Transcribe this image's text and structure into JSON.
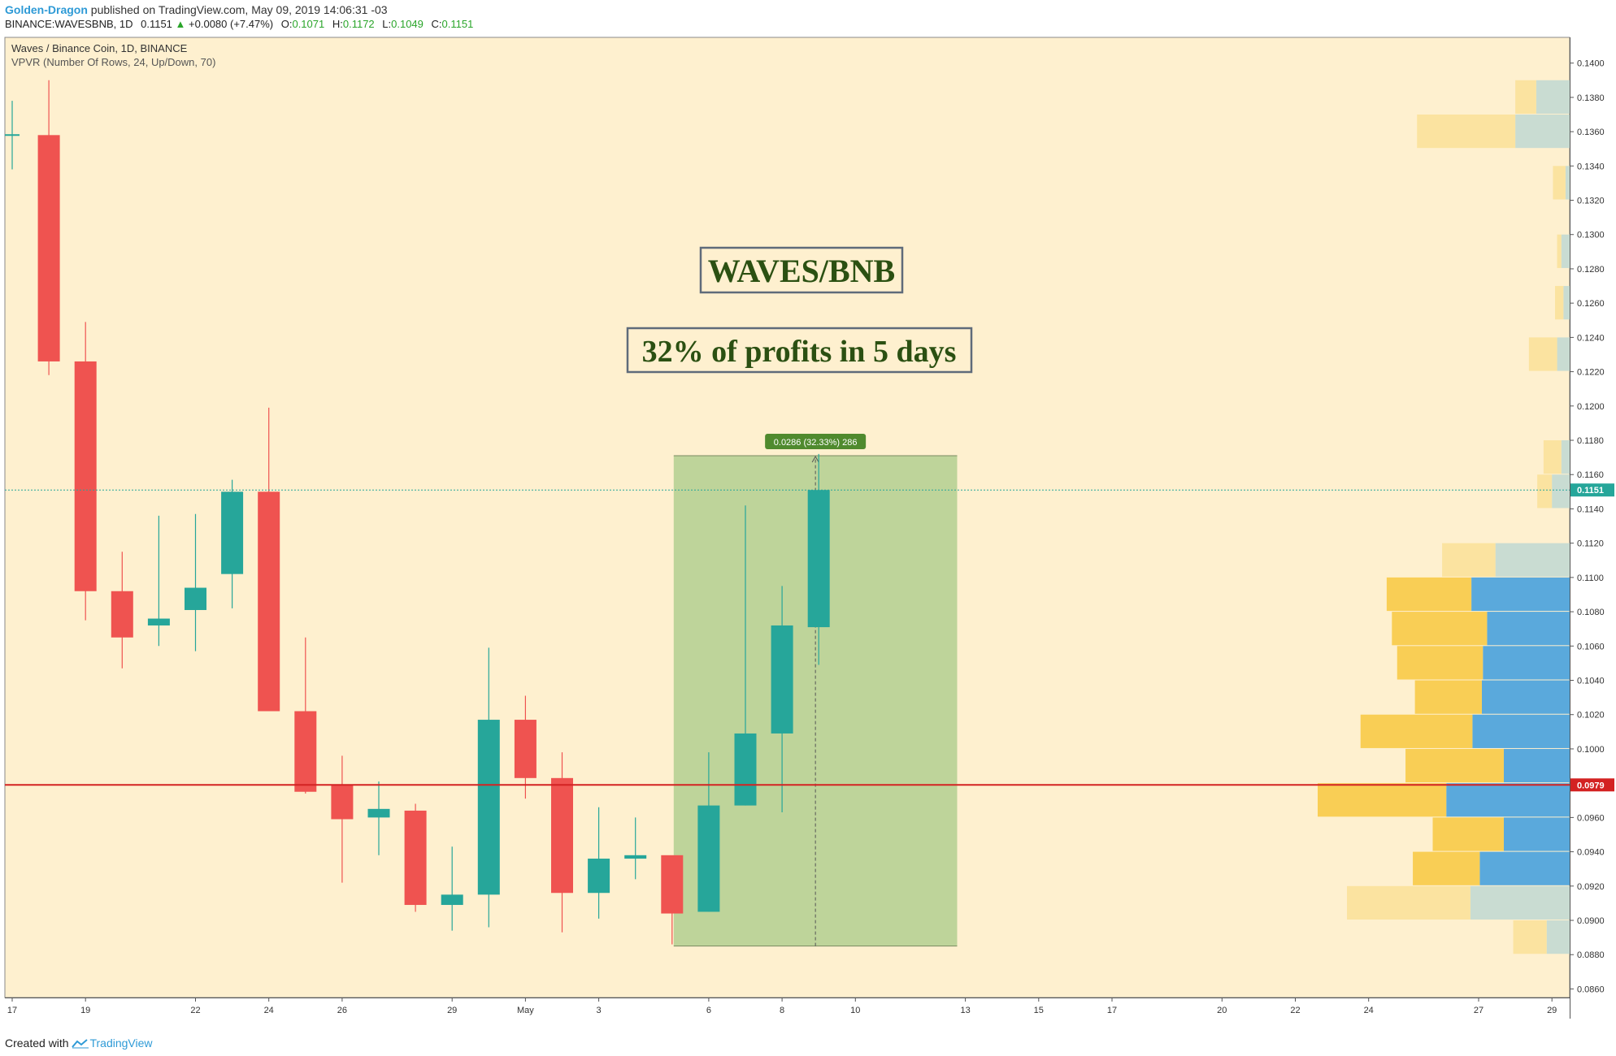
{
  "header": {
    "author": "Golden-Dragon",
    "published": "published on TradingView.com, May 09, 2019 14:06:31 -03",
    "symbol": "BINANCE:WAVESBNB, 1D",
    "last": "0.1151",
    "change": "+0.0080 (+7.47%)",
    "o_label": "O:",
    "o": "0.1071",
    "h_label": "H:",
    "h": "0.1172",
    "l_label": "L:",
    "l": "0.1049",
    "c_label": "C:",
    "c": "0.1151"
  },
  "legend": {
    "title": "Waves / Binance Coin, 1D, BINANCE",
    "indicator": "VPVR (Number Of Rows, 24, Up/Down, 70)"
  },
  "annotations": {
    "headline": "WAVES/BNB",
    "subline": "32% of profits in 5 days",
    "measure_label": "0.0286 (32.33%) 286",
    "last_price_label": "0.1151",
    "line_price_label": "0.0979"
  },
  "footer": {
    "created_with": "Created with",
    "brand": "TradingView"
  },
  "colors": {
    "background": "#fef0cf",
    "up": "#26a69a",
    "down": "#ef5350",
    "measure_fill": "#bed49a",
    "measure_label_bg": "#4f8a2e",
    "vp_up_bright": "#5aa9dc",
    "vp_down_bright": "#f9ce55",
    "vp_up_pale": "#c9dcd2",
    "vp_down_pale": "#fbe3a0",
    "support_line": "#d32222",
    "title_text": "#2b5012"
  },
  "chart_data": {
    "type": "candlestick",
    "ylim": [
      0.0855,
      0.1415
    ],
    "y_ticks": [
      "0.0860",
      "0.0880",
      "0.0900",
      "0.0920",
      "0.0940",
      "0.0960",
      "0.0980",
      "0.1000",
      "0.1020",
      "0.1040",
      "0.1060",
      "0.1080",
      "0.1100",
      "0.1120",
      "0.1140",
      "0.1160",
      "0.1180",
      "0.1200",
      "0.1220",
      "0.1240",
      "0.1260",
      "0.1280",
      "0.1300",
      "0.1320",
      "0.1340",
      "0.1360",
      "0.1380",
      "0.1400"
    ],
    "x_labels": [
      {
        "label": "17",
        "i": 0
      },
      {
        "label": "19",
        "i": 2
      },
      {
        "label": "22",
        "i": 5
      },
      {
        "label": "24",
        "i": 7
      },
      {
        "label": "26",
        "i": 9
      },
      {
        "label": "29",
        "i": 12
      },
      {
        "label": "May",
        "i": 14
      },
      {
        "label": "3",
        "i": 16
      },
      {
        "label": "6",
        "i": 19
      },
      {
        "label": "8",
        "i": 21
      },
      {
        "label": "10",
        "i": 23
      },
      {
        "label": "13",
        "i": 26
      },
      {
        "label": "15",
        "i": 28
      },
      {
        "label": "17",
        "i": 30
      },
      {
        "label": "20",
        "i": 33
      },
      {
        "label": "22",
        "i": 35
      },
      {
        "label": "24",
        "i": 37
      },
      {
        "label": "27",
        "i": 40
      },
      {
        "label": "29",
        "i": 42
      }
    ],
    "candles": [
      {
        "o": 0.1358,
        "h": 0.1378,
        "l": 0.1338,
        "c": 0.1358
      },
      {
        "o": 0.1358,
        "h": 0.139,
        "l": 0.1218,
        "c": 0.1226
      },
      {
        "o": 0.1226,
        "h": 0.1249,
        "l": 0.1075,
        "c": 0.1092
      },
      {
        "o": 0.1092,
        "h": 0.1115,
        "l": 0.1047,
        "c": 0.1065
      },
      {
        "o": 0.1072,
        "h": 0.1136,
        "l": 0.106,
        "c": 0.1076
      },
      {
        "o": 0.1081,
        "h": 0.1137,
        "l": 0.1057,
        "c": 0.1094
      },
      {
        "o": 0.1102,
        "h": 0.1157,
        "l": 0.1082,
        "c": 0.115
      },
      {
        "o": 0.115,
        "h": 0.1199,
        "l": 0.1022,
        "c": 0.1022
      },
      {
        "o": 0.1022,
        "h": 0.1065,
        "l": 0.0974,
        "c": 0.0975
      },
      {
        "o": 0.0979,
        "h": 0.0996,
        "l": 0.0922,
        "c": 0.0959
      },
      {
        "o": 0.096,
        "h": 0.0981,
        "l": 0.0938,
        "c": 0.0965
      },
      {
        "o": 0.0964,
        "h": 0.0968,
        "l": 0.0905,
        "c": 0.0909
      },
      {
        "o": 0.0909,
        "h": 0.0943,
        "l": 0.0894,
        "c": 0.0915
      },
      {
        "o": 0.0915,
        "h": 0.1059,
        "l": 0.0896,
        "c": 0.1017
      },
      {
        "o": 0.1017,
        "h": 0.1031,
        "l": 0.0971,
        "c": 0.0983
      },
      {
        "o": 0.0983,
        "h": 0.0998,
        "l": 0.0893,
        "c": 0.0916
      },
      {
        "o": 0.0916,
        "h": 0.0966,
        "l": 0.0901,
        "c": 0.0936
      },
      {
        "o": 0.0936,
        "h": 0.096,
        "l": 0.0924,
        "c": 0.0938
      },
      {
        "o": 0.0938,
        "h": 0.0937,
        "l": 0.0886,
        "c": 0.0904
      },
      {
        "o": 0.0905,
        "h": 0.0998,
        "l": 0.0905,
        "c": 0.0967
      },
      {
        "o": 0.0967,
        "h": 0.1142,
        "l": 0.0967,
        "c": 0.1009
      },
      {
        "o": 0.1009,
        "h": 0.1095,
        "l": 0.0963,
        "c": 0.1072
      },
      {
        "o": 0.1071,
        "h": 0.1172,
        "l": 0.1049,
        "c": 0.1151
      }
    ],
    "measure": {
      "start_i": 18,
      "end_i": 25,
      "low": 0.0885,
      "high": 0.1171,
      "change": 0.0286,
      "pct": 32.33,
      "ticks": 286
    },
    "last_price": 0.1151,
    "support_price": 0.0979,
    "volume_profile": [
      {
        "lo": 0.088,
        "hi": 0.09,
        "up": 22,
        "down": 32,
        "highlight": false
      },
      {
        "lo": 0.09,
        "hi": 0.092,
        "up": 95,
        "down": 118,
        "highlight": false
      },
      {
        "lo": 0.092,
        "hi": 0.094,
        "up": 86,
        "down": 64,
        "highlight": true
      },
      {
        "lo": 0.094,
        "hi": 0.096,
        "up": 63,
        "down": 68,
        "highlight": true
      },
      {
        "lo": 0.096,
        "hi": 0.098,
        "up": 118,
        "down": 123,
        "highlight": true
      },
      {
        "lo": 0.098,
        "hi": 0.1,
        "up": 63,
        "down": 94,
        "highlight": true
      },
      {
        "lo": 0.1,
        "hi": 0.102,
        "up": 93,
        "down": 107,
        "highlight": true
      },
      {
        "lo": 0.102,
        "hi": 0.104,
        "up": 84,
        "down": 64,
        "highlight": true
      },
      {
        "lo": 0.104,
        "hi": 0.106,
        "up": 83,
        "down": 82,
        "highlight": true
      },
      {
        "lo": 0.106,
        "hi": 0.108,
        "up": 79,
        "down": 91,
        "highlight": true
      },
      {
        "lo": 0.108,
        "hi": 0.11,
        "up": 94,
        "down": 81,
        "highlight": true
      },
      {
        "lo": 0.11,
        "hi": 0.112,
        "up": 71,
        "down": 51,
        "highlight": false
      },
      {
        "lo": 0.114,
        "hi": 0.116,
        "up": 17,
        "down": 14,
        "highlight": false
      },
      {
        "lo": 0.116,
        "hi": 0.118,
        "up": 8,
        "down": 17,
        "highlight": false
      },
      {
        "lo": 0.122,
        "hi": 0.124,
        "up": 12,
        "down": 27,
        "highlight": false
      },
      {
        "lo": 0.125,
        "hi": 0.127,
        "up": 6,
        "down": 8,
        "highlight": false
      },
      {
        "lo": 0.128,
        "hi": 0.13,
        "up": 8,
        "down": 4,
        "highlight": false
      },
      {
        "lo": 0.132,
        "hi": 0.134,
        "up": 4,
        "down": 12,
        "highlight": false
      },
      {
        "lo": 0.135,
        "hi": 0.137,
        "up": 52,
        "down": 94,
        "highlight": false
      },
      {
        "lo": 0.137,
        "hi": 0.139,
        "up": 32,
        "down": 20,
        "highlight": false
      }
    ]
  }
}
